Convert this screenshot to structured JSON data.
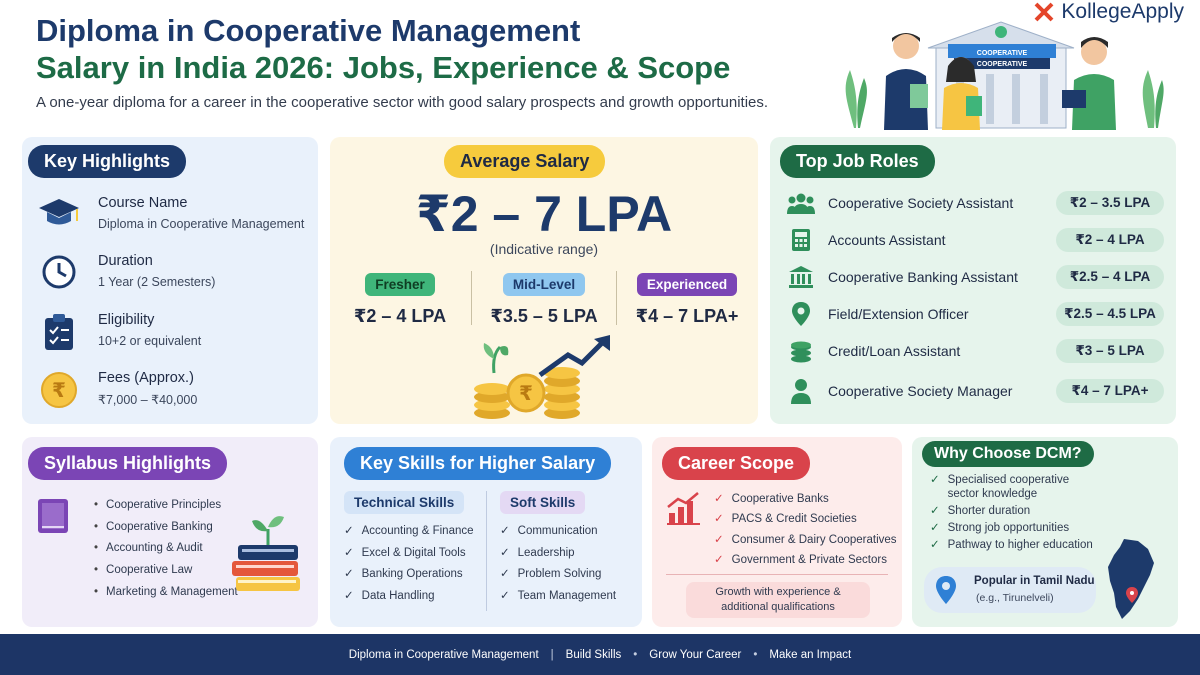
{
  "header": {
    "title_line1": "Diploma in Cooperative Management",
    "title_line2": "Salary in India 2026: Jobs, Experience & Scope",
    "subtitle": "A one-year diploma for a career in the cooperative sector with good salary prospects and growth opportunities.",
    "brand": "KollegeApply",
    "hero_sign_top": "COOPERATIVE",
    "hero_sign_bottom": "COOPERATIVE"
  },
  "key_highlights": {
    "title": "Key Highlights",
    "items": [
      {
        "label": "Course Name",
        "value": "Diploma in Cooperative Management",
        "icon": "graduation-cap-icon"
      },
      {
        "label": "Duration",
        "value": "1 Year (2 Semesters)",
        "icon": "clock-icon"
      },
      {
        "label": "Eligibility",
        "value": "10+2 or equivalent",
        "icon": "clipboard-icon"
      },
      {
        "label": "Fees (Approx.)",
        "value": "₹7,000 – ₹40,000",
        "icon": "rupee-coin-icon"
      }
    ]
  },
  "average_salary": {
    "title": "Average Salary",
    "range": "₹2 – 7 LPA",
    "note": "(Indicative range)",
    "levels": [
      {
        "label": "Fresher",
        "value": "₹2 – 4 LPA",
        "color": "#3fb57a"
      },
      {
        "label": "Mid-Level",
        "value": "₹3.5 – 5 LPA",
        "color": "#8fc7ef"
      },
      {
        "label": "Experienced",
        "value": "₹4 – 7 LPA+",
        "color": "#7b45b5"
      }
    ]
  },
  "top_job_roles": {
    "title": "Top Job Roles",
    "roles": [
      {
        "name": "Cooperative Society Assistant",
        "salary": "₹2 – 3.5 LPA",
        "icon": "people-icon"
      },
      {
        "name": "Accounts Assistant",
        "salary": "₹2 – 4 LPA",
        "icon": "calculator-icon"
      },
      {
        "name": "Cooperative Banking Assistant",
        "salary": "₹2.5 – 4 LPA",
        "icon": "bank-icon"
      },
      {
        "name": "Field/Extension Officer",
        "salary": "₹2.5 – 4.5 LPA",
        "icon": "location-pin-icon"
      },
      {
        "name": "Credit/Loan Assistant",
        "salary": "₹3 – 5 LPA",
        "icon": "coin-stack-icon"
      },
      {
        "name": "Cooperative Society Manager",
        "salary": "₹4 – 7 LPA+",
        "icon": "person-icon"
      }
    ]
  },
  "syllabus": {
    "title": "Syllabus Highlights",
    "items": [
      "Cooperative Principles",
      "Cooperative Banking",
      "Accounting & Audit",
      "Cooperative Law",
      "Marketing & Management"
    ]
  },
  "skills": {
    "title": "Key Skills for Higher Salary",
    "technical_title": "Technical Skills",
    "technical": [
      "Accounting & Finance",
      "Excel & Digital Tools",
      "Banking Operations",
      "Data Handling"
    ],
    "soft_title": "Soft Skills",
    "soft": [
      "Communication",
      "Leadership",
      "Problem Solving",
      "Team Management"
    ]
  },
  "career_scope": {
    "title": "Career Scope",
    "items": [
      "Cooperative Banks",
      "PACS & Credit Societies",
      "Consumer & Dairy Cooperatives",
      "Government & Private Sectors"
    ],
    "note_line1": "Growth with experience &",
    "note_line2": "additional qualifications"
  },
  "why_choose": {
    "title": "Why Choose DCM?",
    "items": [
      "Specialised cooperative sector knowledge",
      "Shorter duration",
      "Strong job opportunities",
      "Pathway to higher education"
    ],
    "popular_label": "Popular in Tamil Nadu",
    "popular_example": "(e.g., Tirunelveli)"
  },
  "footer": {
    "items": [
      "Diploma in Cooperative Management",
      "Build Skills",
      "Grow Your Career",
      "Make an Impact"
    ],
    "separators": [
      "|",
      "•",
      "•"
    ]
  },
  "colors": {
    "navy": "#1d3a6b",
    "green": "#1e6b45",
    "gold": "#f6cb3d",
    "purple": "#7b45b5",
    "blue": "#2f80d5",
    "red": "#d9434b"
  }
}
